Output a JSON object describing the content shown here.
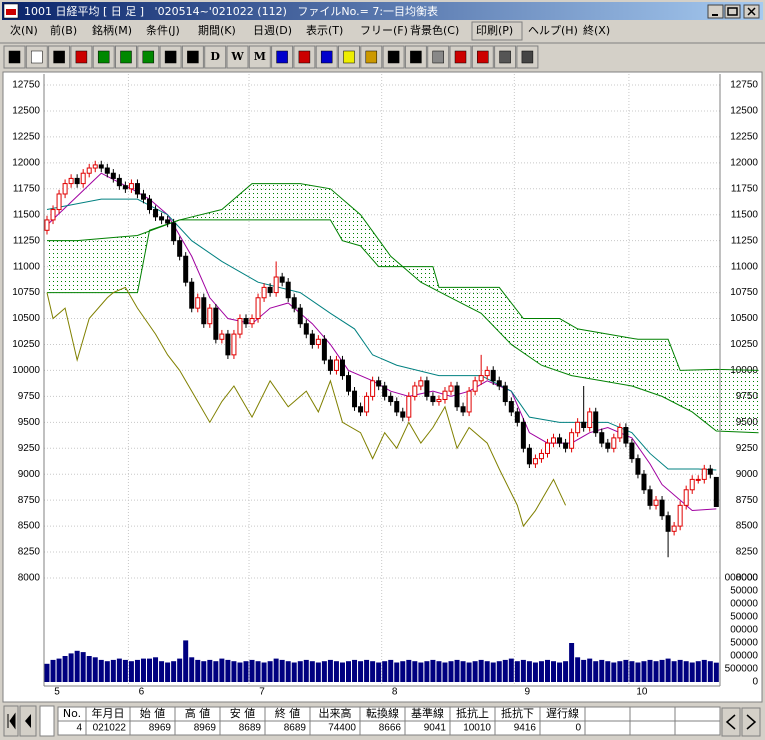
{
  "window": {
    "title": "1001 日経平均 [ 日 足 ]   '020514~'021022 (112)   ファイルNo.= 7:一目均衡表"
  },
  "menu": [
    "次(N)",
    "前(B)",
    "銘柄(M)",
    "条件(J)",
    "期間(K)",
    "日週(D)",
    "表示(T)",
    "フリー(F)",
    "背景色(C)",
    "印刷(P)",
    "ヘルプ(H)",
    "終(X)"
  ],
  "toolbar": [
    "D",
    "W",
    "M"
  ],
  "chart_data": {
    "type": "candlestick",
    "categories": [
      "5",
      null,
      null,
      null,
      null,
      null,
      null,
      null,
      null,
      null,
      null,
      null,
      null,
      null,
      "6",
      null,
      null,
      null,
      null,
      null,
      null,
      null,
      null,
      null,
      null,
      null,
      null,
      null,
      null,
      null,
      null,
      null,
      null,
      null,
      "7",
      null,
      null,
      null,
      null,
      null,
      null,
      null,
      null,
      null,
      null,
      null,
      null,
      null,
      null,
      null,
      null,
      null,
      null,
      null,
      null,
      null,
      "8",
      null,
      null,
      null,
      null,
      null,
      null,
      null,
      null,
      null,
      null,
      null,
      null,
      null,
      null,
      null,
      null,
      null,
      null,
      null,
      null,
      null,
      "9",
      null,
      null,
      null,
      null,
      null,
      null,
      null,
      null,
      null,
      null,
      null,
      null,
      null,
      null,
      null,
      null,
      null,
      null,
      "10",
      null,
      null,
      null,
      null,
      null,
      null,
      null,
      null,
      null,
      null,
      null,
      null,
      null,
      null
    ],
    "open": [
      11350,
      11450,
      11550,
      11700,
      11800,
      11850,
      11800,
      11900,
      11950,
      11980,
      11950,
      11900,
      11850,
      11780,
      11750,
      11800,
      11700,
      11650,
      11550,
      11480,
      11450,
      11420,
      11250,
      11100,
      10850,
      10600,
      10700,
      10450,
      10600,
      10300,
      10350,
      10150,
      10350,
      10500,
      10450,
      10500,
      10700,
      10800,
      10750,
      10900,
      10850,
      10700,
      10600,
      10450,
      10350,
      10250,
      10300,
      10100,
      10000,
      10100,
      9950,
      9800,
      9650,
      9600,
      9750,
      9900,
      9850,
      9750,
      9700,
      9600,
      9550,
      9750,
      9850,
      9900,
      9750,
      9700,
      9720,
      9800,
      9850,
      9650,
      9600,
      9800,
      9900,
      9950,
      10000,
      9900,
      9850,
      9700,
      9600,
      9500,
      9250,
      9100,
      9150,
      9200,
      9300,
      9350,
      9300,
      9250,
      9400,
      9500,
      9450,
      9600,
      9400,
      9300,
      9250,
      9350,
      9450,
      9300,
      9150,
      9000,
      8850,
      8700,
      8750,
      8600,
      8450,
      8500,
      8700,
      8850,
      8950,
      8950,
      9050,
      8969
    ],
    "high": [
      11490,
      11590,
      11740,
      11840,
      11890,
      11890,
      11940,
      11990,
      12020,
      12020,
      11990,
      11940,
      11890,
      11820,
      11840,
      11840,
      11740,
      11690,
      11590,
      11520,
      11490,
      11460,
      11290,
      11140,
      10890,
      10740,
      10740,
      10640,
      10640,
      10390,
      10390,
      10390,
      10540,
      10540,
      10540,
      10740,
      10840,
      10840,
      11050,
      10940,
      10890,
      10740,
      10640,
      10490,
      10390,
      10340,
      10340,
      10140,
      10140,
      10140,
      9990,
      9840,
      9690,
      9790,
      9940,
      9940,
      9890,
      9790,
      9740,
      9640,
      9790,
      9890,
      9940,
      9940,
      9790,
      9760,
      9840,
      9890,
      9890,
      9690,
      9840,
      9940,
      10150,
      10040,
      10040,
      9940,
      9890,
      9740,
      9640,
      9540,
      9290,
      9190,
      9240,
      9340,
      9390,
      9390,
      9340,
      9440,
      9540,
      9850,
      9640,
      9640,
      9440,
      9340,
      9390,
      9490,
      9490,
      9340,
      9190,
      9040,
      8890,
      8790,
      8790,
      8640,
      8540,
      8740,
      8890,
      8990,
      8990,
      9090,
      9090,
      8969
    ],
    "low": [
      11310,
      11410,
      11510,
      11660,
      11760,
      11760,
      11760,
      11860,
      11910,
      11910,
      11860,
      11810,
      11740,
      11710,
      11710,
      11660,
      11610,
      11510,
      11440,
      11410,
      11380,
      11210,
      11060,
      10810,
      10560,
      10560,
      10410,
      10410,
      10260,
      10260,
      10110,
      10110,
      10310,
      10410,
      10410,
      10460,
      10660,
      10710,
      10710,
      10810,
      10660,
      10560,
      10410,
      10310,
      10210,
      10210,
      10060,
      9960,
      9960,
      9910,
      9760,
      9610,
      9560,
      9560,
      9710,
      9810,
      9710,
      9660,
      9560,
      9510,
      9510,
      9710,
      9810,
      9710,
      9660,
      9660,
      9680,
      9760,
      9610,
      9560,
      9560,
      9760,
      9860,
      9910,
      9860,
      9810,
      9660,
      9560,
      9460,
      9210,
      9060,
      9060,
      9110,
      9160,
      9260,
      9260,
      9210,
      9210,
      9360,
      9410,
      9410,
      9360,
      9260,
      9210,
      9210,
      9310,
      9260,
      9110,
      8960,
      8810,
      8660,
      8660,
      8560,
      8200,
      8410,
      8460,
      8660,
      8810,
      8910,
      8910,
      8960,
      8689
    ],
    "close": [
      11450,
      11550,
      11700,
      11800,
      11850,
      11800,
      11900,
      11950,
      11980,
      11950,
      11900,
      11850,
      11780,
      11750,
      11800,
      11700,
      11650,
      11550,
      11480,
      11450,
      11420,
      11250,
      11100,
      10850,
      10600,
      10700,
      10450,
      10600,
      10300,
      10350,
      10150,
      10350,
      10500,
      10450,
      10500,
      10700,
      10800,
      10750,
      10900,
      10850,
      10700,
      10600,
      10450,
      10350,
      10250,
      10300,
      10100,
      10000,
      10100,
      9950,
      9800,
      9650,
      9600,
      9750,
      9900,
      9850,
      9750,
      9700,
      9600,
      9550,
      9750,
      9850,
      9900,
      9750,
      9700,
      9720,
      9800,
      9850,
      9650,
      9600,
      9800,
      9900,
      9950,
      10000,
      9900,
      9850,
      9700,
      9600,
      9500,
      9250,
      9100,
      9150,
      9200,
      9300,
      9350,
      9300,
      9250,
      9400,
      9500,
      9450,
      9600,
      9400,
      9300,
      9250,
      9350,
      9450,
      9300,
      9150,
      9000,
      8850,
      8700,
      8750,
      8600,
      8450,
      8500,
      8700,
      8850,
      8950,
      8950,
      9050,
      9000,
      8689
    ],
    "color_up": "#e00000",
    "color_down": "#000000",
    "ylim": [
      8000,
      12750
    ],
    "yticks": [
      8000,
      8250,
      8500,
      8750,
      9000,
      9250,
      9500,
      9750,
      10000,
      10250,
      10500,
      10750,
      11000,
      11250,
      11500,
      11750,
      12000,
      12250,
      12500,
      12750
    ],
    "grid": true,
    "lines": [
      {
        "color": "#a000a0",
        "x": [
          0,
          9,
          14,
          17,
          20,
          24,
          27,
          30,
          34,
          37,
          40,
          44,
          47,
          50,
          54,
          57,
          60,
          64,
          67,
          70,
          73,
          77,
          80,
          83,
          87,
          90,
          93,
          97,
          100,
          102,
          107,
          111
        ],
        "values": [
          11400,
          11900,
          11750,
          11650,
          11500,
          11100,
          10700,
          10500,
          10450,
          10600,
          10650,
          10450,
          10250,
          10000,
          9900,
          9800,
          9750,
          9800,
          9750,
          9800,
          9900,
          9800,
          9400,
          9300,
          9300,
          9400,
          9450,
          9350,
          9100,
          8900,
          8650,
          8666
        ]
      },
      {
        "color": "#008080",
        "x": [
          0,
          9,
          15,
          20,
          24,
          29,
          32,
          35,
          42,
          47,
          51,
          54,
          58,
          65,
          72,
          77,
          80,
          85,
          90,
          93,
          97,
          100,
          103,
          108,
          111
        ],
        "values": [
          11550,
          11650,
          11650,
          11500,
          11250,
          11050,
          10950,
          10850,
          10750,
          10550,
          10400,
          10150,
          10050,
          9950,
          9950,
          9800,
          9550,
          9500,
          9500,
          9500,
          9400,
          9200,
          9050,
          9050,
          9041
        ]
      },
      {
        "color": "#008000",
        "x": [
          0,
          5,
          15,
          22,
          29,
          34,
          42,
          47,
          52,
          57,
          62,
          67,
          72,
          77,
          82,
          87,
          92,
          97,
          102,
          107,
          111,
          118
        ],
        "values": [
          11250,
          11250,
          11300,
          11450,
          11550,
          11800,
          11800,
          11750,
          11500,
          11100,
          10850,
          10700,
          10550,
          10250,
          10050,
          9950,
          9900,
          9850,
          9750,
          9600,
          9416,
          9400
        ]
      },
      {
        "color": "#008000",
        "x": [
          0,
          15,
          17,
          22,
          47,
          49,
          52,
          55,
          64,
          65,
          75,
          79,
          85,
          88,
          98,
          103,
          105,
          111,
          118
        ],
        "values": [
          10750,
          10750,
          11350,
          11450,
          11450,
          11250,
          11200,
          11000,
          11000,
          10800,
          10800,
          10500,
          10500,
          10400,
          10300,
          10300,
          10000,
          10010,
          10000
        ]
      },
      {
        "color": "#808000",
        "x": [
          0,
          1,
          3,
          5,
          7,
          10,
          11,
          13,
          15,
          18,
          20,
          22,
          24,
          25,
          27,
          29,
          31,
          34,
          37,
          40,
          43,
          45,
          47,
          49,
          52,
          54,
          56,
          58,
          60,
          62,
          64,
          66,
          68,
          70,
          73,
          75,
          78,
          79,
          81,
          83,
          84,
          86
        ],
        "values": [
          10750,
          10500,
          10600,
          10100,
          10500,
          10700,
          10750,
          10800,
          10600,
          10350,
          10150,
          10000,
          9800,
          9700,
          9500,
          9700,
          9850,
          9550,
          9900,
          9650,
          9800,
          9600,
          9900,
          9500,
          9400,
          9150,
          9400,
          9250,
          9500,
          9300,
          9450,
          9650,
          9250,
          9450,
          9300,
          9050,
          8700,
          8500,
          8650,
          8850,
          8950,
          8700
        ]
      }
    ],
    "cloud_color": "#008000",
    "volume": {
      "color": "#000080",
      "ylim": [
        0,
        400000
      ],
      "values": [
        70000,
        85000,
        90000,
        100000,
        110000,
        120000,
        115000,
        100000,
        95000,
        85000,
        80000,
        85000,
        90000,
        85000,
        80000,
        85000,
        90000,
        90000,
        95000,
        80000,
        75000,
        80000,
        90000,
        160000,
        95000,
        85000,
        80000,
        85000,
        80000,
        90000,
        85000,
        80000,
        75000,
        80000,
        85000,
        80000,
        75000,
        80000,
        90000,
        85000,
        80000,
        75000,
        80000,
        85000,
        80000,
        75000,
        80000,
        85000,
        80000,
        75000,
        80000,
        85000,
        80000,
        85000,
        80000,
        75000,
        80000,
        85000,
        75000,
        80000,
        85000,
        80000,
        75000,
        80000,
        85000,
        80000,
        75000,
        80000,
        85000,
        80000,
        75000,
        80000,
        85000,
        80000,
        75000,
        80000,
        85000,
        90000,
        80000,
        85000,
        80000,
        75000,
        80000,
        85000,
        80000,
        75000,
        80000,
        150000,
        95000,
        85000,
        90000,
        80000,
        85000,
        80000,
        75000,
        80000,
        85000,
        80000,
        75000,
        80000,
        85000,
        80000,
        85000,
        90000,
        80000,
        85000,
        80000,
        75000,
        80000,
        85000,
        80000,
        74400
      ],
      "axis_labels": [
        "000000",
        "50000",
        "00000",
        "50000",
        "00000",
        "50000",
        "00000",
        "500000",
        "0"
      ]
    }
  },
  "table": {
    "header": [
      "No.",
      "年月日",
      "始 値",
      "高 値",
      "安 値",
      "終 値",
      "出来高",
      "転換線",
      "基準線",
      "抵抗上",
      "抵抗下",
      "遅行線"
    ],
    "rows": [
      [
        "4",
        "021022",
        "8969",
        "8969",
        "8689",
        "8689",
        "74400",
        "8666",
        "9041",
        "10010",
        "9416",
        "0"
      ]
    ]
  }
}
